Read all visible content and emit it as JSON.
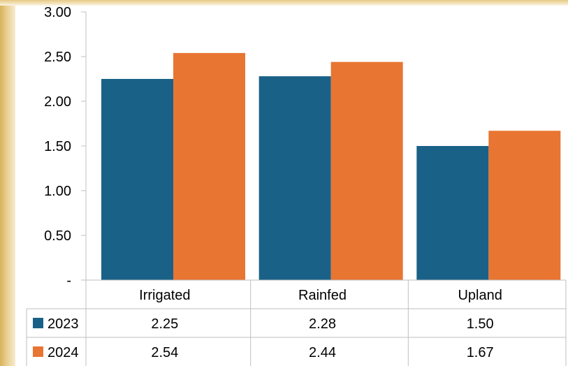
{
  "chart_data": {
    "type": "bar",
    "categories": [
      "Irrigated",
      "Rainfed",
      "Upland"
    ],
    "series": [
      {
        "name": "2023",
        "values": [
          2.25,
          2.28,
          1.5
        ],
        "color": "#1a6187"
      },
      {
        "name": "2024",
        "values": [
          2.54,
          2.44,
          1.67
        ],
        "color": "#e87532"
      }
    ],
    "ylim": [
      0,
      3.0
    ],
    "yticks": [
      0,
      0.5,
      1.0,
      1.5,
      2.0,
      2.5,
      3.0
    ],
    "ytick_labels": [
      "-",
      "0.50",
      "1.00",
      "1.50",
      "2.00",
      "2.50",
      "3.00"
    ],
    "data_table": {
      "rows": [
        {
          "label": "2023",
          "values": [
            "2.25",
            "2.28",
            "1.50"
          ]
        },
        {
          "label": "2024",
          "values": [
            "2.54",
            "2.44",
            "1.67"
          ]
        }
      ]
    },
    "grid": false,
    "legend": "data-table"
  }
}
